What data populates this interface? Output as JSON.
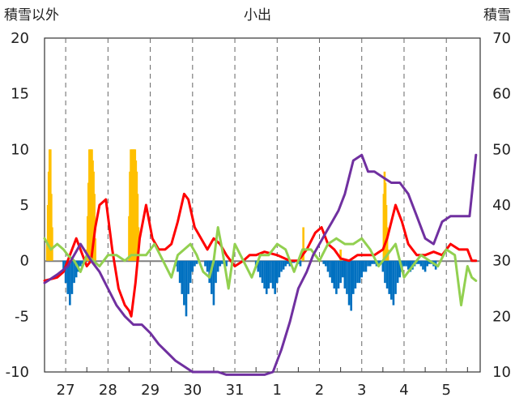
{
  "chart_data": {
    "type": "line",
    "title": "小出",
    "left_axis_label": "積雪以外",
    "right_axis_label": "積雪",
    "left_ylim": [
      -10,
      20
    ],
    "left_yticks": [
      "20",
      "15",
      "10",
      "5",
      "0",
      "-5",
      "-10"
    ],
    "right_ylim": [
      10,
      70
    ],
    "right_yticks": [
      "70",
      "60",
      "50",
      "40",
      "30",
      "20",
      "10"
    ],
    "x_tick_labels": [
      "27",
      "28",
      "29",
      "30",
      "31",
      "1",
      "2",
      "3",
      "4",
      "5"
    ],
    "x_range_days": [
      0,
      10.3
    ],
    "grid": "dashed vertical lines at day midpoints",
    "series": [
      {
        "kind": "snowfall-bars",
        "axis": "left",
        "color": "#FFC000",
        "x": [
          0.06,
          0.08,
          0.1,
          0.12,
          0.14,
          0.16,
          0.18,
          1.0,
          1.02,
          1.04,
          1.06,
          1.08,
          1.1,
          1.12,
          1.14,
          1.16,
          1.18,
          1.2,
          2.0,
          2.02,
          2.04,
          2.06,
          2.08,
          2.1,
          2.12,
          2.14,
          2.16,
          2.18,
          2.2,
          2.22,
          6.1,
          6.12,
          7.0,
          8.02,
          8.04,
          8.06,
          8.08,
          8.1,
          8.12
        ],
        "values": [
          1.5,
          5,
          8,
          10,
          10,
          6,
          3,
          1,
          4,
          7,
          10,
          10,
          10,
          10,
          9,
          8,
          6,
          2,
          4,
          8,
          10,
          10,
          10,
          10,
          10,
          10,
          9,
          8,
          6,
          3,
          1,
          3,
          1,
          6,
          8,
          7,
          5,
          3,
          1
        ]
      },
      {
        "kind": "precip-negative-bars",
        "axis": "left",
        "color": "#0070C0",
        "x": [
          0.45,
          0.5,
          0.55,
          0.6,
          0.65,
          0.7,
          0.75,
          0.8,
          0.85,
          0.9,
          3.1,
          3.15,
          3.2,
          3.25,
          3.3,
          3.35,
          3.4,
          3.45,
          3.5,
          3.55,
          3.6,
          3.8,
          3.85,
          3.9,
          3.95,
          4.0,
          4.05,
          4.1,
          4.15,
          4.2,
          4.3,
          5.0,
          5.05,
          5.1,
          5.15,
          5.2,
          5.25,
          5.3,
          5.35,
          5.4,
          5.45,
          5.5,
          5.55,
          5.6,
          5.65,
          5.7,
          5.75,
          5.8,
          5.85,
          5.9,
          6.0,
          6.05,
          6.6,
          6.65,
          6.7,
          6.75,
          6.8,
          6.85,
          6.9,
          6.95,
          7.0,
          7.05,
          7.1,
          7.15,
          7.2,
          7.25,
          7.3,
          7.35,
          7.4,
          7.45,
          7.5,
          7.55,
          7.6,
          7.65,
          7.7,
          7.75,
          7.8,
          7.85,
          7.9,
          7.95,
          8.0,
          8.05,
          8.1,
          8.15,
          8.2,
          8.25,
          8.3,
          8.35,
          8.4,
          8.45,
          8.5,
          8.55,
          8.6,
          8.65,
          8.7,
          8.75,
          8.8,
          8.85,
          8.9,
          8.95,
          9.0,
          9.05,
          9.1,
          9.15,
          9.2,
          9.25
        ],
        "values": [
          -1,
          -2,
          -3,
          -4,
          -3,
          -2,
          -1.5,
          -1,
          -0.5,
          -0.3,
          -0.5,
          -1,
          -2,
          -3,
          -4,
          -5,
          -3,
          -2,
          -1,
          -0.5,
          -0.3,
          -0.5,
          -1,
          -2,
          -3,
          -4,
          -2,
          -1,
          -0.5,
          -0.3,
          -0.5,
          -0.5,
          -1,
          -1.5,
          -2,
          -2.5,
          -3,
          -2.5,
          -2,
          -2.5,
          -3,
          -2,
          -1.5,
          -1,
          -0.8,
          -0.5,
          -0.3,
          -0.5,
          -0.2,
          -0.2,
          -0.3,
          -0.5,
          -0.3,
          -0.5,
          -1,
          -1.5,
          -2,
          -2.5,
          -3,
          -2.5,
          -2,
          -1.5,
          -2.5,
          -3,
          -4,
          -4.5,
          -3,
          -2.5,
          -2,
          -2,
          -1.5,
          -1,
          -1,
          -0.5,
          -0.5,
          -0.3,
          -0.3,
          -0.5,
          -0.5,
          -0.3,
          -1,
          -2,
          -2.5,
          -3,
          -3.5,
          -4,
          -3,
          -2,
          -1.5,
          -1,
          -0.5,
          -0.5,
          -0.8,
          -1,
          -0.8,
          -0.5,
          -0.3,
          -0.3,
          -0.5,
          -0.8,
          -1,
          -0.5,
          -0.3,
          -0.3,
          -0.5,
          -0.8
        ]
      },
      {
        "name": "",
        "kind": "line",
        "axis": "left",
        "color": "#FF0000",
        "x": [
          0,
          0.3,
          0.45,
          0.6,
          0.75,
          0.9,
          1.0,
          1.1,
          1.2,
          1.3,
          1.45,
          1.6,
          1.75,
          1.9,
          2.0,
          2.05,
          2.15,
          2.25,
          2.4,
          2.55,
          2.7,
          2.85,
          3.0,
          3.15,
          3.3,
          3.4,
          3.55,
          3.7,
          3.85,
          4.0,
          4.15,
          4.3,
          4.5,
          4.7,
          4.85,
          5.0,
          5.2,
          5.5,
          5.8,
          6.0,
          6.2,
          6.4,
          6.55,
          6.7,
          6.85,
          7.0,
          7.2,
          7.4,
          7.6,
          7.8,
          8.0,
          8.1,
          8.2,
          8.3,
          8.45,
          8.6,
          8.8,
          9.0,
          9.2,
          9.4,
          9.6,
          9.8,
          10.0,
          10.1,
          10.2
        ],
        "values": [
          -1.8,
          -1.5,
          -1,
          0.5,
          2,
          0.5,
          -0.5,
          0,
          3,
          5,
          5.5,
          1,
          -2.5,
          -4,
          -4.5,
          -5,
          -2,
          2,
          5,
          2,
          1,
          1,
          1.5,
          3.5,
          6,
          5.5,
          3,
          2,
          1,
          2,
          1.5,
          0.5,
          -0.5,
          0,
          0.5,
          0.5,
          0.8,
          0.5,
          0,
          0,
          1,
          2.5,
          3,
          1.5,
          1,
          0.2,
          0,
          0.5,
          0.5,
          0.5,
          1,
          2,
          3.5,
          5,
          3.5,
          1.5,
          0.5,
          0.5,
          0.8,
          0.5,
          1.5,
          1,
          1,
          0,
          0
        ]
      },
      {
        "name": "",
        "kind": "line",
        "axis": "left",
        "color": "#92D050",
        "x": [
          0,
          0.15,
          0.3,
          0.45,
          0.55,
          0.7,
          0.85,
          1.0,
          1.15,
          1.3,
          1.5,
          1.7,
          1.9,
          2.05,
          2.2,
          2.4,
          2.6,
          2.8,
          3.0,
          3.15,
          3.3,
          3.45,
          3.6,
          3.75,
          3.9,
          4.0,
          4.1,
          4.2,
          4.35,
          4.5,
          4.7,
          4.9,
          5.1,
          5.3,
          5.5,
          5.7,
          5.9,
          6.1,
          6.3,
          6.5,
          6.7,
          6.9,
          7.1,
          7.3,
          7.5,
          7.7,
          7.9,
          8.1,
          8.3,
          8.5,
          8.7,
          8.9,
          9.1,
          9.3,
          9.5,
          9.7,
          9.85,
          10.0,
          10.1,
          10.2
        ],
        "values": [
          2,
          1,
          1.5,
          1,
          0.5,
          0,
          -1,
          0.5,
          0,
          -0.5,
          0.5,
          0.5,
          0,
          0.5,
          0.5,
          0.5,
          1.5,
          0,
          -1.5,
          0.5,
          1,
          1.5,
          0.5,
          -1,
          -1.5,
          0,
          3,
          1,
          -2.5,
          1.5,
          0,
          -1.5,
          0.5,
          0.5,
          1.5,
          1,
          -1,
          1,
          1,
          0,
          1.5,
          2,
          1.5,
          1.5,
          2,
          1,
          -0.5,
          0.5,
          1.5,
          -1.5,
          -0.5,
          0.5,
          0,
          -0.5,
          1,
          0.5,
          -4,
          -0.5,
          -1.5,
          -1.8
        ]
      },
      {
        "name": "",
        "kind": "line",
        "axis": "right",
        "color": "#7030A0",
        "x": [
          0,
          0.1,
          0.2,
          0.3,
          0.55,
          0.7,
          0.85,
          1.1,
          1.3,
          1.5,
          1.7,
          1.9,
          2.1,
          2.3,
          2.5,
          2.7,
          2.9,
          3.1,
          3.3,
          3.5,
          3.7,
          3.9,
          4.1,
          4.3,
          4.55,
          4.8,
          5.0,
          5.2,
          5.4,
          5.6,
          5.8,
          6.0,
          6.2,
          6.35,
          6.5,
          6.65,
          6.8,
          6.95,
          7.1,
          7.3,
          7.5,
          7.65,
          7.8,
          8.0,
          8.2,
          8.4,
          8.6,
          8.8,
          9.0,
          9.2,
          9.4,
          9.6,
          9.75,
          9.9,
          10.05,
          10.2
        ],
        "values": [
          26,
          26.5,
          27,
          27.5,
          29,
          31,
          33,
          30,
          28,
          25,
          22,
          20,
          18.5,
          18.5,
          17,
          15,
          13.5,
          12,
          11,
          10,
          10,
          10,
          10,
          9.5,
          9.5,
          9.5,
          9.5,
          9.5,
          10,
          14,
          19,
          25,
          28,
          31,
          33,
          35,
          37,
          39,
          42,
          48,
          49,
          46,
          46,
          45,
          44,
          44,
          42,
          38,
          34,
          33,
          37,
          38,
          38,
          38,
          38,
          49
        ]
      }
    ]
  }
}
